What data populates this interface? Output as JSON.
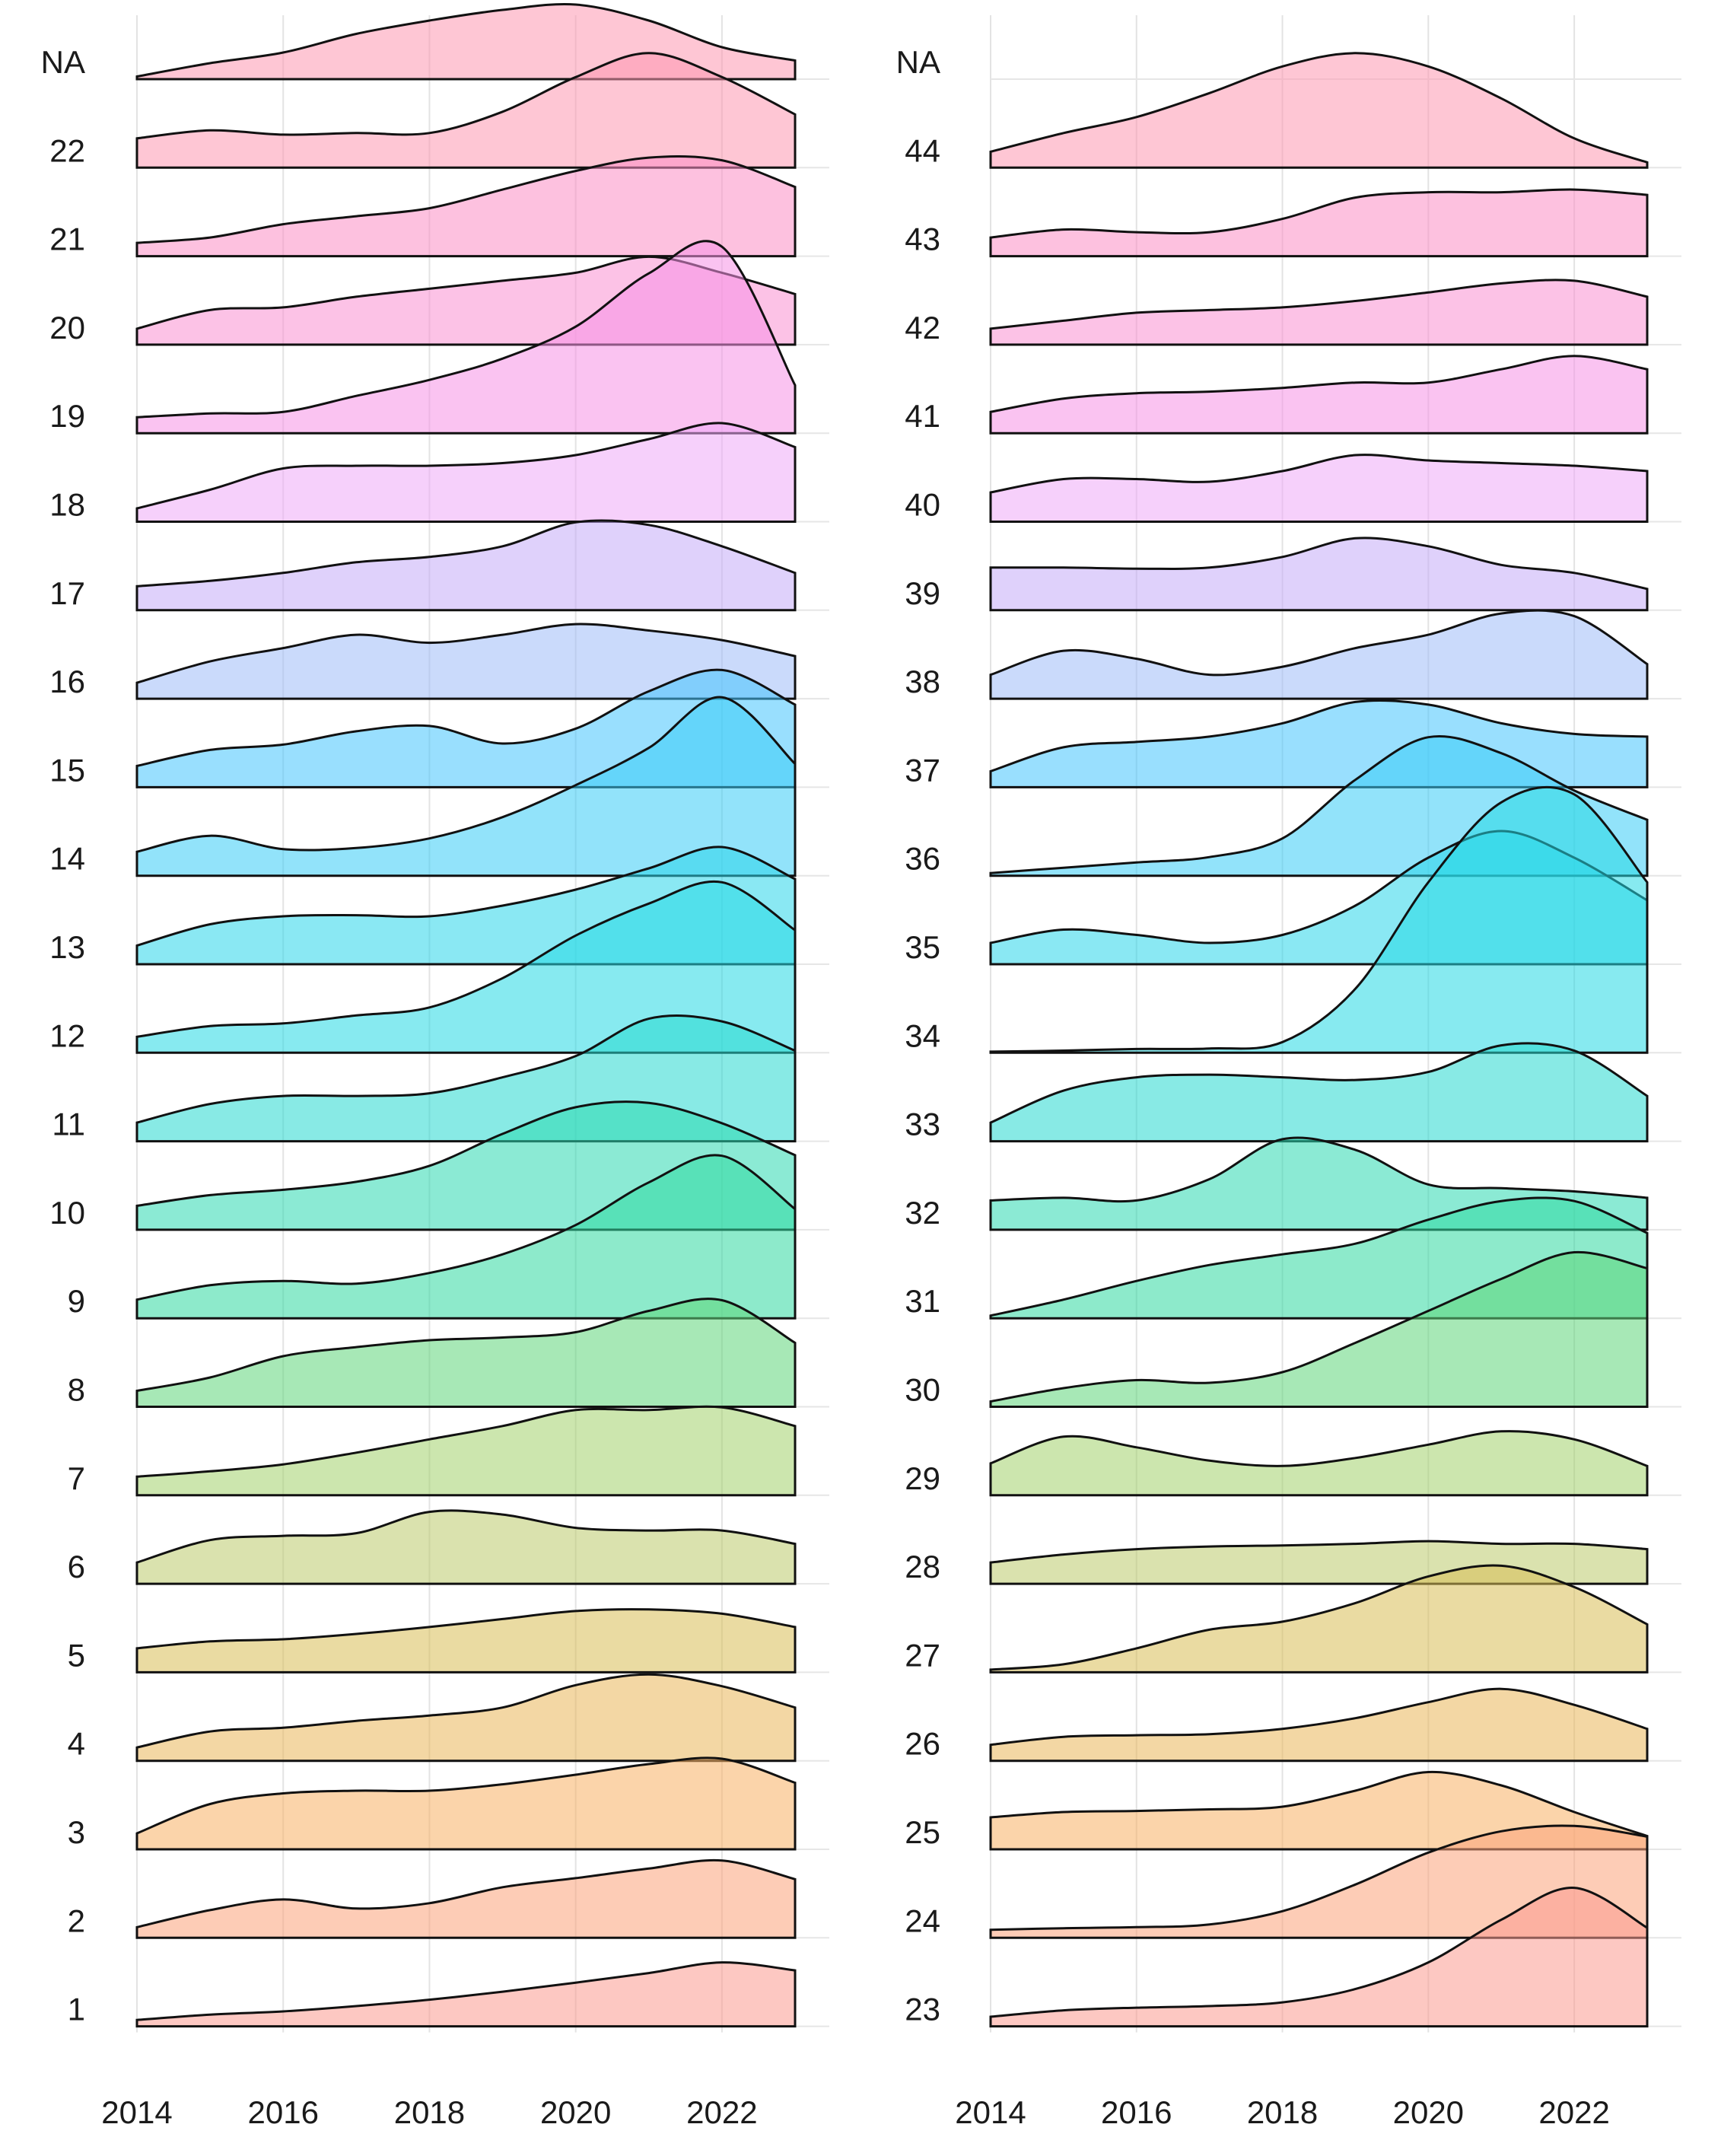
{
  "chart_data": [
    {
      "type": "area",
      "subtype": "ridgeline",
      "x": [
        2014,
        2015,
        2016,
        2017,
        2018,
        2019,
        2020,
        2021,
        2022,
        2023
      ],
      "xlim": [
        2014,
        2023
      ],
      "x_ticks": [
        "2014",
        "2016",
        "2018",
        "2020",
        "2022"
      ],
      "grid": true,
      "legend": "none",
      "series": [
        {
          "label": "1",
          "color": "#fb9a8f",
          "values": [
            0.12,
            0.22,
            0.28,
            0.38,
            0.5,
            0.65,
            0.82,
            1.0,
            1.2,
            1.05
          ]
        },
        {
          "label": "2",
          "color": "#fba37a",
          "values": [
            0.2,
            0.52,
            0.72,
            0.55,
            0.65,
            0.95,
            1.12,
            1.3,
            1.45,
            1.1
          ]
        },
        {
          "label": "3",
          "color": "#f8b065",
          "values": [
            0.3,
            0.85,
            1.05,
            1.1,
            1.1,
            1.22,
            1.4,
            1.6,
            1.7,
            1.25
          ]
        },
        {
          "label": "4",
          "color": "#e9b65a",
          "values": [
            0.25,
            0.55,
            0.62,
            0.75,
            0.85,
            1.0,
            1.42,
            1.62,
            1.4,
            1.0
          ]
        },
        {
          "label": "5",
          "color": "#d9bd55",
          "values": [
            0.45,
            0.58,
            0.62,
            0.72,
            0.85,
            1.0,
            1.15,
            1.18,
            1.1,
            0.85
          ]
        },
        {
          "label": "6",
          "color": "#bccb6b",
          "values": [
            0.4,
            0.82,
            0.9,
            0.95,
            1.35,
            1.3,
            1.05,
            1.0,
            1.0,
            0.75
          ]
        },
        {
          "label": "7",
          "color": "#a2d16c",
          "values": [
            0.35,
            0.45,
            0.58,
            0.8,
            1.05,
            1.3,
            1.6,
            1.6,
            1.65,
            1.3
          ]
        },
        {
          "label": "8",
          "color": "#5ed57a",
          "values": [
            0.3,
            0.55,
            0.95,
            1.12,
            1.25,
            1.3,
            1.4,
            1.8,
            2.0,
            1.2
          ]
        },
        {
          "label": "9",
          "color": "#30d8a0",
          "values": [
            0.35,
            0.62,
            0.7,
            0.65,
            0.85,
            1.2,
            1.75,
            2.55,
            3.05,
            2.05
          ]
        },
        {
          "label": "10",
          "color": "#2bd8b1",
          "values": [
            0.45,
            0.65,
            0.75,
            0.9,
            1.2,
            1.8,
            2.3,
            2.38,
            2.0,
            1.4
          ]
        },
        {
          "label": "11",
          "color": "#27d8cf",
          "values": [
            0.35,
            0.7,
            0.85,
            0.85,
            0.9,
            1.2,
            1.6,
            2.3,
            2.25,
            1.7
          ]
        },
        {
          "label": "12",
          "color": "#25d8e3",
          "values": [
            0.3,
            0.5,
            0.55,
            0.7,
            0.85,
            1.4,
            2.2,
            2.8,
            3.2,
            2.3
          ]
        },
        {
          "label": "13",
          "color": "#2ad5ea",
          "values": [
            0.35,
            0.75,
            0.9,
            0.92,
            0.9,
            1.1,
            1.4,
            1.8,
            2.2,
            1.6
          ]
        },
        {
          "label": "14",
          "color": "#38ccf5",
          "values": [
            0.45,
            0.75,
            0.5,
            0.52,
            0.7,
            1.1,
            1.7,
            2.4,
            3.35,
            2.1
          ]
        },
        {
          "label": "15",
          "color": "#45c4fd",
          "values": [
            0.4,
            0.7,
            0.8,
            1.05,
            1.15,
            0.82,
            1.1,
            1.8,
            2.2,
            1.55
          ]
        },
        {
          "label": "16",
          "color": "#9ebcf8",
          "values": [
            0.3,
            0.7,
            0.95,
            1.2,
            1.05,
            1.2,
            1.4,
            1.28,
            1.1,
            0.8
          ]
        },
        {
          "label": "17",
          "color": "#c5acf7",
          "values": [
            0.45,
            0.55,
            0.7,
            0.9,
            1.0,
            1.2,
            1.65,
            1.6,
            1.2,
            0.7
          ]
        },
        {
          "label": "18",
          "color": "#eea9f7",
          "values": [
            0.25,
            0.6,
            1.0,
            1.05,
            1.05,
            1.1,
            1.25,
            1.55,
            1.85,
            1.4
          ]
        },
        {
          "label": "19",
          "color": "#f692e6",
          "values": [
            0.3,
            0.37,
            0.4,
            0.7,
            1.0,
            1.4,
            2.0,
            3.0,
            3.5,
            0.9
          ]
        },
        {
          "label": "20",
          "color": "#fa8fd2",
          "values": [
            0.3,
            0.65,
            0.7,
            0.9,
            1.05,
            1.2,
            1.35,
            1.65,
            1.35,
            0.95
          ]
        },
        {
          "label": "21",
          "color": "#fc8ec4",
          "values": [
            0.25,
            0.35,
            0.6,
            0.75,
            0.9,
            1.25,
            1.6,
            1.85,
            1.8,
            1.3
          ]
        },
        {
          "label": "22",
          "color": "#fd98b0",
          "values": [
            0.55,
            0.7,
            0.62,
            0.65,
            0.65,
            1.05,
            1.7,
            2.15,
            1.7,
            1.0
          ]
        }
      ],
      "top_label": "NA",
      "top_series": {
        "label": "NA",
        "color": "#fd98b0",
        "values": [
          0.05,
          0.3,
          0.5,
          0.85,
          1.1,
          1.3,
          1.4,
          1.1,
          0.6,
          0.35
        ]
      }
    },
    {
      "type": "area",
      "subtype": "ridgeline",
      "x": [
        2014,
        2015,
        2016,
        2017,
        2018,
        2019,
        2020,
        2021,
        2022,
        2023
      ],
      "xlim": [
        2014,
        2023
      ],
      "x_ticks": [
        "2014",
        "2016",
        "2018",
        "2020",
        "2022"
      ],
      "grid": true,
      "legend": "none",
      "series": [
        {
          "label": "23",
          "color": "#fb9a8f",
          "values": [
            0.18,
            0.3,
            0.35,
            0.38,
            0.45,
            0.7,
            1.2,
            2.0,
            2.6,
            1.85
          ]
        },
        {
          "label": "24",
          "color": "#fba37a",
          "values": [
            0.15,
            0.18,
            0.2,
            0.25,
            0.5,
            1.0,
            1.6,
            2.0,
            2.1,
            1.9
          ]
        },
        {
          "label": "25",
          "color": "#f8b065",
          "values": [
            0.6,
            0.7,
            0.72,
            0.75,
            0.8,
            1.1,
            1.45,
            1.2,
            0.7,
            0.25
          ]
        },
        {
          "label": "26",
          "color": "#e9b65a",
          "values": [
            0.3,
            0.45,
            0.48,
            0.5,
            0.6,
            0.8,
            1.1,
            1.35,
            1.05,
            0.6
          ]
        },
        {
          "label": "27",
          "color": "#d9bd55",
          "values": [
            0.05,
            0.15,
            0.45,
            0.8,
            0.95,
            1.3,
            1.8,
            2.0,
            1.6,
            0.9
          ]
        },
        {
          "label": "28",
          "color": "#bccb6b",
          "values": [
            0.4,
            0.55,
            0.65,
            0.7,
            0.72,
            0.75,
            0.8,
            0.75,
            0.75,
            0.65
          ]
        },
        {
          "label": "29",
          "color": "#a2d16c",
          "values": [
            0.6,
            1.1,
            0.9,
            0.65,
            0.55,
            0.7,
            0.95,
            1.2,
            1.05,
            0.55
          ]
        },
        {
          "label": "30",
          "color": "#5ed57a",
          "values": [
            0.1,
            0.35,
            0.5,
            0.45,
            0.65,
            1.2,
            1.8,
            2.4,
            2.9,
            2.6
          ]
        },
        {
          "label": "31",
          "color": "#30d8a0",
          "values": [
            0.05,
            0.35,
            0.7,
            1.0,
            1.2,
            1.4,
            1.85,
            2.2,
            2.2,
            1.6
          ]
        },
        {
          "label": "32",
          "color": "#2bd8b1",
          "values": [
            0.55,
            0.6,
            0.55,
            0.95,
            1.7,
            1.5,
            0.85,
            0.78,
            0.72,
            0.6
          ]
        },
        {
          "label": "33",
          "color": "#27d8cf",
          "values": [
            0.35,
            0.95,
            1.2,
            1.25,
            1.2,
            1.15,
            1.3,
            1.8,
            1.7,
            0.85
          ]
        },
        {
          "label": "34",
          "color": "#25d8e3",
          "values": [
            0.02,
            0.04,
            0.07,
            0.08,
            0.2,
            1.2,
            3.2,
            4.7,
            4.85,
            3.2
          ]
        },
        {
          "label": "35",
          "color": "#2ad5ea",
          "values": [
            0.4,
            0.65,
            0.55,
            0.4,
            0.55,
            1.1,
            2.0,
            2.5,
            2.0,
            1.2
          ]
        },
        {
          "label": "36",
          "color": "#38ccf5",
          "values": [
            0.05,
            0.15,
            0.25,
            0.35,
            0.7,
            1.8,
            2.6,
            2.3,
            1.6,
            1.05
          ]
        },
        {
          "label": "37",
          "color": "#45c4fd",
          "values": [
            0.3,
            0.75,
            0.85,
            0.95,
            1.2,
            1.6,
            1.55,
            1.2,
            1.0,
            0.95
          ]
        },
        {
          "label": "38",
          "color": "#9ebcf8",
          "values": [
            0.45,
            0.9,
            0.75,
            0.45,
            0.6,
            0.95,
            1.2,
            1.6,
            1.55,
            0.65
          ]
        },
        {
          "label": "39",
          "color": "#c5acf7",
          "values": [
            0.8,
            0.8,
            0.78,
            0.8,
            1.0,
            1.35,
            1.2,
            0.85,
            0.7,
            0.4
          ]
        },
        {
          "label": "40",
          "color": "#eea9f7",
          "values": [
            0.55,
            0.8,
            0.8,
            0.75,
            0.95,
            1.25,
            1.15,
            1.1,
            1.05,
            0.95
          ]
        },
        {
          "label": "41",
          "color": "#f692e6",
          "values": [
            0.4,
            0.65,
            0.75,
            0.78,
            0.85,
            0.95,
            0.95,
            1.2,
            1.45,
            1.2
          ]
        },
        {
          "label": "42",
          "color": "#fa8fd2",
          "values": [
            0.3,
            0.45,
            0.6,
            0.65,
            0.7,
            0.82,
            0.98,
            1.15,
            1.2,
            0.9
          ]
        },
        {
          "label": "43",
          "color": "#fc8ec4",
          "values": [
            0.35,
            0.5,
            0.45,
            0.45,
            0.7,
            1.1,
            1.2,
            1.2,
            1.25,
            1.15
          ]
        },
        {
          "label": "44",
          "color": "#fd98b0",
          "values": [
            0.3,
            0.65,
            0.95,
            1.4,
            1.9,
            2.15,
            1.9,
            1.3,
            0.55,
            0.1
          ]
        }
      ],
      "top_label": "NA",
      "top_series": null
    }
  ]
}
